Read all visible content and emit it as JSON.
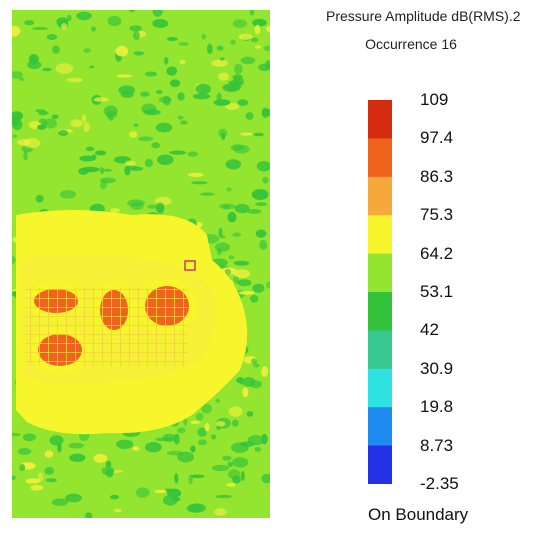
{
  "chart_data": {
    "type": "heatmap",
    "title": "Pressure Amplitude dB(RMS).2",
    "subtitle": "Occurrence 16",
    "colorbar": {
      "tick_labels": [
        "109",
        "97.4",
        "86.3",
        "75.3",
        "64.2",
        "53.1",
        "42",
        "30.9",
        "19.8",
        "8.73",
        "-2.35"
      ],
      "range": [
        -2.35,
        109
      ],
      "colors": [
        "#d42a0e",
        "#f0631d",
        "#f7a83d",
        "#f7f52b",
        "#93e52f",
        "#33c33b",
        "#38c891",
        "#2ee2e2",
        "#1f8bf1",
        "#2232e4"
      ],
      "footer": "On Boundary"
    },
    "regions": [
      {
        "name": "background field",
        "value_dB": 58
      },
      {
        "name": "central plateau",
        "value_dB": 68
      },
      {
        "name": "source hotspot 1",
        "value_dB": 93
      },
      {
        "name": "source hotspot 2",
        "value_dB": 93
      },
      {
        "name": "source hotspot 3",
        "value_dB": 93
      },
      {
        "name": "source hotspot 4",
        "value_dB": 93
      }
    ]
  }
}
